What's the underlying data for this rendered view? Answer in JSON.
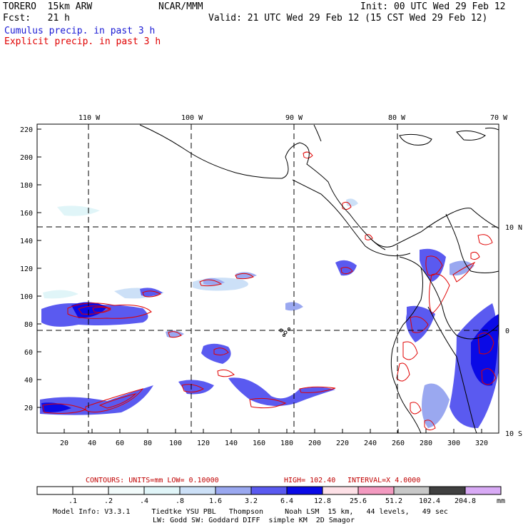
{
  "header": {
    "model": "TORERO  15km ARW",
    "org": "NCAR/MMM",
    "init": "Init: 00 UTC Wed 29 Feb 12",
    "fcst": "Fcst:   21 h",
    "valid": "Valid: 21 UTC Wed 29 Feb 12 (15 CST Wed 29 Feb 12)",
    "field1": "Cumulus precip. in past 3 h",
    "field2": "Explicit precip. in past 3 h",
    "field1_color": "#1a1ad4",
    "field2_color": "#e00000"
  },
  "map": {
    "lon_labels": [
      "110 W",
      "100 W",
      "90 W",
      "80 W",
      "70 W"
    ],
    "lat_labels": [
      "10 N",
      "0",
      "10 S"
    ],
    "y_ticks": [
      "220",
      "200",
      "180",
      "160",
      "140",
      "120",
      "100",
      "80",
      "60",
      "40",
      "20"
    ],
    "x_ticks": [
      "20",
      "40",
      "60",
      "80",
      "100",
      "120",
      "140",
      "160",
      "180",
      "200",
      "220",
      "240",
      "260",
      "280",
      "300",
      "320"
    ]
  },
  "contours": {
    "units": "CONTOURS:  UNITS=mm  LOW= 0.10000",
    "high": "HIGH=  102.40",
    "interval": "INTERVAL=X  4.0000",
    "color": "#c00000"
  },
  "legend": {
    "levels": [
      ".1",
      ".2",
      ".4",
      ".8",
      "1.6",
      "3.2",
      "6.4",
      "12.8",
      "25.6",
      "51.2",
      "102.4",
      "204.8"
    ],
    "unit": "mm",
    "colors": [
      "#ffffff",
      "#ffffff",
      "#f2fbfb",
      "#e0f5f8",
      "#cce0f7",
      "#9aa8f0",
      "#5a5af0",
      "#0a0ae6",
      "#fde0e6",
      "#f39ac0",
      "#c8c8c8",
      "#404040",
      "#d8aaf5"
    ]
  },
  "footer": {
    "line1": "Model Info: V3.3.1     Tiedtke YSU PBL   Thompson     Noah LSM  15 km,   44 levels,   49 sec",
    "line2": "LW: Godd SW: Goddard DIFF  simple KM  2D Smagor"
  }
}
